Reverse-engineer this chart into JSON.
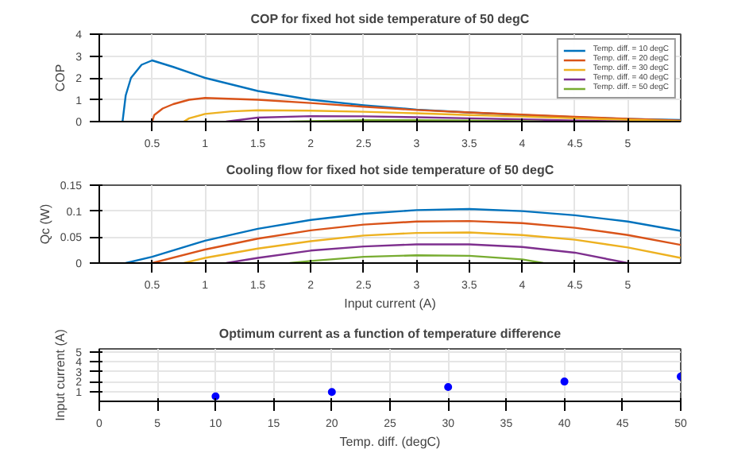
{
  "chart_data": [
    {
      "type": "line",
      "title": "COP for fixed hot side temperature of 50 degC",
      "ylabel": "COP",
      "xlim": [
        0,
        5.5
      ],
      "xticks": [
        0.5,
        1,
        1.5,
        2,
        2.5,
        3,
        3.5,
        4,
        4.5,
        5
      ],
      "ylim": [
        0,
        4
      ],
      "yticks": [
        0,
        1,
        2,
        3,
        4
      ],
      "grid": true,
      "legend": "top right",
      "series": [
        {
          "name": "Temp. diff. = 10 degC",
          "color": "#0072bd",
          "x": [
            0.22,
            0.25,
            0.3,
            0.4,
            0.5,
            0.7,
            1,
            1.5,
            2,
            2.5,
            3,
            3.5,
            4,
            4.5,
            5,
            5.5
          ],
          "values": [
            0,
            1.2,
            2.0,
            2.6,
            2.8,
            2.5,
            2.0,
            1.4,
            1.0,
            0.75,
            0.55,
            0.42,
            0.3,
            0.2,
            0.12,
            0.07
          ]
        },
        {
          "name": "Temp. diff. = 20 degC",
          "color": "#d95319",
          "x": [
            0.5,
            0.52,
            0.6,
            0.7,
            0.85,
            1,
            1.5,
            2,
            2.5,
            3,
            3.5,
            4,
            4.5,
            5,
            5.5
          ],
          "values": [
            0,
            0.3,
            0.6,
            0.8,
            1.0,
            1.08,
            1.0,
            0.85,
            0.68,
            0.53,
            0.42,
            0.32,
            0.22,
            0.13,
            0.05
          ]
        },
        {
          "name": "Temp. diff. = 30 degC",
          "color": "#edb120",
          "x": [
            0.8,
            0.85,
            1,
            1.25,
            1.5,
            2,
            2.5,
            3,
            3.5,
            4,
            4.5,
            5,
            5.5
          ],
          "values": [
            0,
            0.15,
            0.35,
            0.47,
            0.52,
            0.5,
            0.45,
            0.38,
            0.3,
            0.23,
            0.15,
            0.08,
            0.02
          ]
        },
        {
          "name": "Temp. diff. = 40 degC",
          "color": "#7e2f8e",
          "x": [
            1.2,
            1.5,
            2,
            2.5,
            3,
            3.5,
            4,
            4.5,
            5
          ],
          "values": [
            0,
            0.18,
            0.25,
            0.24,
            0.2,
            0.15,
            0.1,
            0.05,
            0
          ]
        },
        {
          "name": "Temp. diff. = 50 degC",
          "color": "#77ac30",
          "x": [
            1.8,
            2.5,
            3,
            3.5,
            4,
            4.2
          ],
          "values": [
            0,
            0.07,
            0.07,
            0.05,
            0.02,
            0
          ]
        }
      ]
    },
    {
      "type": "line",
      "title": "Cooling flow for fixed hot side temperature of 50 degC",
      "xlabel": "Input current (A)",
      "ylabel": "Qc (W)",
      "xlim": [
        0,
        5.5
      ],
      "xticks": [
        0.5,
        1,
        1.5,
        2,
        2.5,
        3,
        3.5,
        4,
        4.5,
        5
      ],
      "ylim": [
        0,
        0.15
      ],
      "yticks": [
        0,
        0.05,
        0.1,
        0.15
      ],
      "grid": true,
      "series": [
        {
          "color": "#0072bd",
          "x": [
            0.25,
            0.5,
            1,
            1.5,
            2,
            2.5,
            3,
            3.5,
            4,
            4.5,
            5,
            5.5
          ],
          "values": [
            0,
            0.012,
            0.043,
            0.066,
            0.083,
            0.095,
            0.102,
            0.104,
            0.1,
            0.092,
            0.08,
            0.062
          ]
        },
        {
          "color": "#d95319",
          "x": [
            0.5,
            1,
            1.5,
            2,
            2.5,
            3,
            3.5,
            4,
            4.5,
            5,
            5.5
          ],
          "values": [
            0,
            0.026,
            0.047,
            0.063,
            0.074,
            0.08,
            0.081,
            0.077,
            0.068,
            0.054,
            0.035
          ]
        },
        {
          "color": "#edb120",
          "x": [
            0.8,
            1,
            1.5,
            2,
            2.5,
            3,
            3.5,
            4,
            4.5,
            5,
            5.5
          ],
          "values": [
            0,
            0.01,
            0.028,
            0.042,
            0.053,
            0.058,
            0.059,
            0.054,
            0.045,
            0.03,
            0.01
          ]
        },
        {
          "color": "#7e2f8e",
          "x": [
            1.2,
            1.5,
            2,
            2.5,
            3,
            3.5,
            4,
            4.5,
            5
          ],
          "values": [
            0,
            0.01,
            0.024,
            0.032,
            0.036,
            0.036,
            0.031,
            0.02,
            0
          ]
        },
        {
          "color": "#77ac30",
          "x": [
            1.8,
            2,
            2.5,
            3,
            3.5,
            4,
            4.2
          ],
          "values": [
            0,
            0.004,
            0.012,
            0.015,
            0.014,
            0.007,
            0
          ]
        }
      ]
    },
    {
      "type": "scatter",
      "title": "Optimum current as a function of temperature difference",
      "xlabel": "Temp. diff. (degC)",
      "ylabel": "Input current (A)",
      "xlim": [
        0,
        50
      ],
      "xticks": [
        0,
        5,
        10,
        15,
        20,
        25,
        30,
        35,
        40,
        45,
        50
      ],
      "ylim": [
        0,
        5.3
      ],
      "yticks": [
        1,
        2,
        3,
        4,
        5
      ],
      "grid": true,
      "marker": "circle",
      "series": [
        {
          "color": "#0000ff",
          "x": [
            10,
            20,
            30,
            40,
            50
          ],
          "values": [
            0.5,
            0.95,
            1.45,
            2.0,
            2.5
          ]
        }
      ]
    }
  ]
}
